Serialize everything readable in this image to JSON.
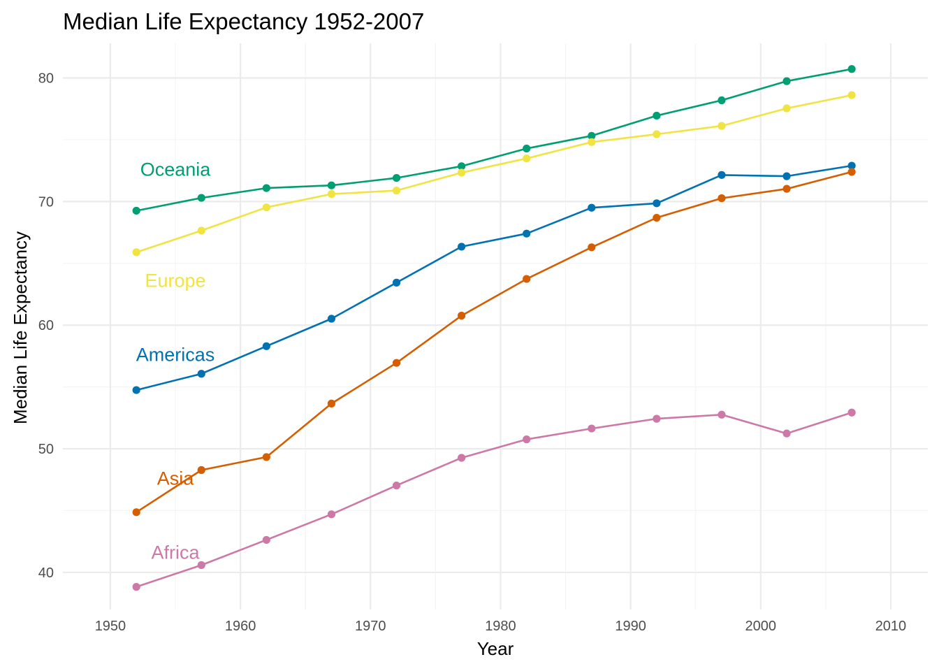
{
  "chart_data": {
    "type": "line",
    "title": "Median Life Expectancy 1952-2007",
    "xlabel": "Year",
    "ylabel": "Median Life Expectancy",
    "xlim": [
      1946.35,
      2012.85
    ],
    "ylim": [
      37.0,
      82.8
    ],
    "x_ticks": [
      1950,
      1960,
      1970,
      1980,
      1990,
      2000,
      2010
    ],
    "y_ticks": [
      40,
      50,
      60,
      70,
      80
    ],
    "grid": true,
    "legend": "direct-labels",
    "x": [
      1952,
      1957,
      1962,
      1967,
      1972,
      1977,
      1982,
      1987,
      1992,
      1997,
      2002,
      2007
    ],
    "series": [
      {
        "name": "Oceania",
        "color": "#009E73",
        "values": [
          69.26,
          70.3,
          71.09,
          71.31,
          71.91,
          72.86,
          74.29,
          75.32,
          76.95,
          78.19,
          79.74,
          80.72
        ],
        "label_anchor": [
          1955.0,
          72.6
        ]
      },
      {
        "name": "Europe",
        "color": "#F0E442",
        "values": [
          65.9,
          67.65,
          69.53,
          70.61,
          70.89,
          72.34,
          73.49,
          74.81,
          75.45,
          76.12,
          77.54,
          78.61
        ],
        "label_anchor": [
          1955.0,
          63.6
        ]
      },
      {
        "name": "Americas",
        "color": "#0072B2",
        "values": [
          54.75,
          56.07,
          58.3,
          60.52,
          63.44,
          66.35,
          67.41,
          69.5,
          69.86,
          72.15,
          72.05,
          72.9
        ],
        "label_anchor": [
          1955.0,
          57.6
        ]
      },
      {
        "name": "Asia",
        "color": "#D55E00",
        "values": [
          44.87,
          48.28,
          49.33,
          53.66,
          56.95,
          60.77,
          63.74,
          66.3,
          68.69,
          70.27,
          71.03,
          72.4
        ],
        "label_anchor": [
          1955.0,
          47.6
        ]
      },
      {
        "name": "Africa",
        "color": "#CC79A7",
        "values": [
          38.83,
          40.59,
          42.63,
          44.7,
          47.03,
          49.27,
          50.76,
          51.64,
          52.43,
          52.76,
          51.24,
          52.93
        ],
        "label_anchor": [
          1955.0,
          41.6
        ]
      }
    ]
  }
}
